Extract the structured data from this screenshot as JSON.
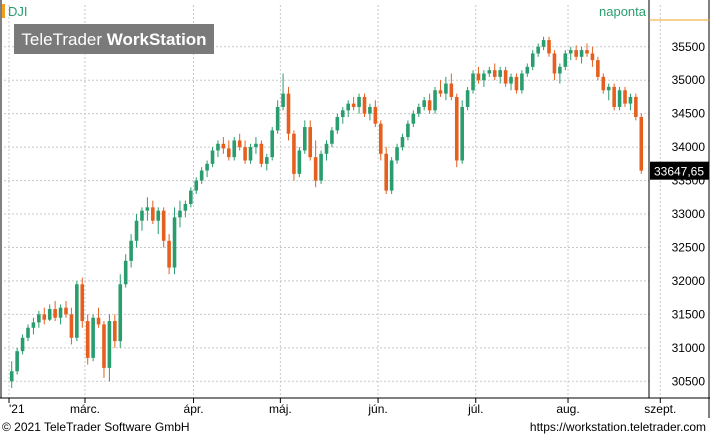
{
  "chart_data": {
    "type": "candlestick",
    "symbol": "DJI",
    "interval": "naponta",
    "watermark": "TeleTrader WorkStation",
    "last_value": 33647.65,
    "last_value_label": "33647,65",
    "y_ticks": [
      "30500",
      "31000",
      "31500",
      "32000",
      "32500",
      "33000",
      "33500",
      "34000",
      "34500",
      "35000",
      "35500"
    ],
    "ylim": [
      30250,
      35900
    ],
    "x_labels": [
      {
        "label": "'21",
        "index": 0
      },
      {
        "label": "márc.",
        "index": 14
      },
      {
        "label": "ápr.",
        "index": 34
      },
      {
        "label": "máj.",
        "index": 50
      },
      {
        "label": "jún.",
        "index": 68
      },
      {
        "label": "júl.",
        "index": 86
      },
      {
        "label": "aug.",
        "index": 103
      },
      {
        "label": "szept.",
        "index": 120
      }
    ],
    "colors": {
      "up": "#2a9d6f",
      "down": "#e5601f",
      "accent": "#f0a020",
      "grid": "#c8c8c8"
    },
    "candles": [
      [
        30500,
        30800,
        30400,
        30650
      ],
      [
        30650,
        31000,
        30600,
        30950
      ],
      [
        30950,
        31200,
        30900,
        31150
      ],
      [
        31150,
        31350,
        31100,
        31300
      ],
      [
        31300,
        31450,
        31200,
        31380
      ],
      [
        31380,
        31550,
        31300,
        31500
      ],
      [
        31500,
        31600,
        31350,
        31420
      ],
      [
        31420,
        31650,
        31400,
        31580
      ],
      [
        31580,
        31700,
        31400,
        31450
      ],
      [
        31450,
        31650,
        31350,
        31600
      ],
      [
        31600,
        31700,
        31450,
        31500
      ],
      [
        31500,
        31600,
        31050,
        31150
      ],
      [
        31150,
        32000,
        31100,
        31950
      ],
      [
        31950,
        32050,
        31300,
        31400
      ],
      [
        31400,
        31500,
        30750,
        30850
      ],
      [
        30850,
        31500,
        30800,
        31450
      ],
      [
        31450,
        31600,
        31300,
        31350
      ],
      [
        31350,
        31400,
        30550,
        30700
      ],
      [
        30700,
        31500,
        30500,
        31400
      ],
      [
        31400,
        31500,
        31000,
        31100
      ],
      [
        31100,
        32100,
        31000,
        31950
      ],
      [
        31950,
        32400,
        31900,
        32300
      ],
      [
        32300,
        32700,
        32200,
        32600
      ],
      [
        32600,
        33000,
        32500,
        32900
      ],
      [
        32900,
        33100,
        32750,
        33050
      ],
      [
        33050,
        33250,
        32900,
        33100
      ],
      [
        33100,
        33200,
        32850,
        32900
      ],
      [
        32900,
        33100,
        32700,
        33050
      ],
      [
        33050,
        33100,
        32500,
        32600
      ],
      [
        32600,
        32700,
        32100,
        32200
      ],
      [
        32200,
        33100,
        32100,
        32950
      ],
      [
        32950,
        33200,
        32800,
        33050
      ],
      [
        33050,
        33200,
        32950,
        33150
      ],
      [
        33150,
        33400,
        33100,
        33350
      ],
      [
        33350,
        33550,
        33300,
        33500
      ],
      [
        33500,
        33700,
        33450,
        33650
      ],
      [
        33650,
        33800,
        33550,
        33750
      ],
      [
        33750,
        34000,
        33700,
        33950
      ],
      [
        33950,
        34100,
        33850,
        34050
      ],
      [
        34050,
        34150,
        33900,
        33980
      ],
      [
        33980,
        34100,
        33800,
        33850
      ],
      [
        33850,
        34150,
        33800,
        34100
      ],
      [
        34100,
        34200,
        33950,
        34000
      ],
      [
        34000,
        34100,
        33750,
        33800
      ],
      [
        33800,
        34050,
        33750,
        34000
      ],
      [
        34000,
        34150,
        33900,
        34050
      ],
      [
        34050,
        34100,
        33700,
        33750
      ],
      [
        33750,
        33900,
        33650,
        33850
      ],
      [
        33850,
        34300,
        33800,
        34250
      ],
      [
        34250,
        34700,
        34200,
        34600
      ],
      [
        34600,
        35100,
        34550,
        34800
      ],
      [
        34800,
        34900,
        34100,
        34200
      ],
      [
        34200,
        34250,
        33500,
        33600
      ],
      [
        33600,
        34000,
        33550,
        33950
      ],
      [
        33950,
        34400,
        33900,
        34300
      ],
      [
        34300,
        34400,
        33800,
        33850
      ],
      [
        33850,
        34100,
        33400,
        33500
      ],
      [
        33500,
        33950,
        33450,
        33900
      ],
      [
        33900,
        34100,
        33800,
        34050
      ],
      [
        34050,
        34300,
        34000,
        34250
      ],
      [
        34250,
        34500,
        34200,
        34450
      ],
      [
        34450,
        34600,
        34350,
        34550
      ],
      [
        34550,
        34700,
        34450,
        34650
      ],
      [
        34650,
        34750,
        34550,
        34600
      ],
      [
        34600,
        34800,
        34500,
        34750
      ],
      [
        34750,
        34800,
        34450,
        34500
      ],
      [
        34500,
        34650,
        34400,
        34600
      ],
      [
        34600,
        34700,
        34300,
        34350
      ],
      [
        34350,
        34400,
        33800,
        33900
      ],
      [
        33900,
        34000,
        33300,
        33350
      ],
      [
        33350,
        33850,
        33300,
        33800
      ],
      [
        33800,
        34050,
        33750,
        34000
      ],
      [
        34000,
        34200,
        33950,
        34150
      ],
      [
        34150,
        34400,
        34100,
        34350
      ],
      [
        34350,
        34550,
        34300,
        34500
      ],
      [
        34500,
        34650,
        34450,
        34600
      ],
      [
        34600,
        34750,
        34550,
        34700
      ],
      [
        34700,
        34800,
        34500,
        34550
      ],
      [
        34550,
        34900,
        34500,
        34850
      ],
      [
        34850,
        35000,
        34750,
        34800
      ],
      [
        34800,
        35050,
        34700,
        34950
      ],
      [
        34950,
        35100,
        34700,
        34750
      ],
      [
        34750,
        34800,
        33700,
        33800
      ],
      [
        33800,
        34700,
        33750,
        34600
      ],
      [
        34600,
        34900,
        34550,
        34850
      ],
      [
        34850,
        35150,
        34800,
        35100
      ],
      [
        35100,
        35200,
        34950,
        35000
      ],
      [
        35000,
        35150,
        34900,
        35100
      ],
      [
        35100,
        35200,
        35050,
        35150
      ],
      [
        35150,
        35250,
        35000,
        35050
      ],
      [
        35050,
        35200,
        34950,
        35150
      ],
      [
        35150,
        35200,
        34900,
        34950
      ],
      [
        34950,
        35100,
        34850,
        35050
      ],
      [
        35050,
        35100,
        34800,
        34850
      ],
      [
        34850,
        35150,
        34800,
        35100
      ],
      [
        35100,
        35250,
        35050,
        35200
      ],
      [
        35200,
        35450,
        35150,
        35400
      ],
      [
        35400,
        35550,
        35350,
        35500
      ],
      [
        35500,
        35650,
        35450,
        35600
      ],
      [
        35600,
        35650,
        35350,
        35400
      ],
      [
        35400,
        35450,
        35000,
        35100
      ],
      [
        35100,
        35250,
        34950,
        35200
      ],
      [
        35200,
        35450,
        35150,
        35400
      ],
      [
        35400,
        35500,
        35300,
        35450
      ],
      [
        35450,
        35520,
        35300,
        35350
      ],
      [
        35350,
        35500,
        35250,
        35450
      ],
      [
        35450,
        35550,
        35350,
        35400
      ],
      [
        35400,
        35500,
        35200,
        35300
      ],
      [
        35300,
        35350,
        35000,
        35050
      ],
      [
        35050,
        35100,
        34800,
        34850
      ],
      [
        34850,
        34950,
        34700,
        34900
      ],
      [
        34900,
        34950,
        34550,
        34600
      ],
      [
        34600,
        34900,
        34550,
        34850
      ],
      [
        34850,
        34900,
        34600,
        34650
      ],
      [
        34650,
        34800,
        34550,
        34750
      ],
      [
        34750,
        34800,
        34400,
        34450
      ],
      [
        34450,
        34500,
        33600,
        33648
      ]
    ]
  },
  "footer": {
    "copyright": "© 2021  TeleTrader Software GmbH",
    "url": "https://workstation.teletrader.com"
  }
}
